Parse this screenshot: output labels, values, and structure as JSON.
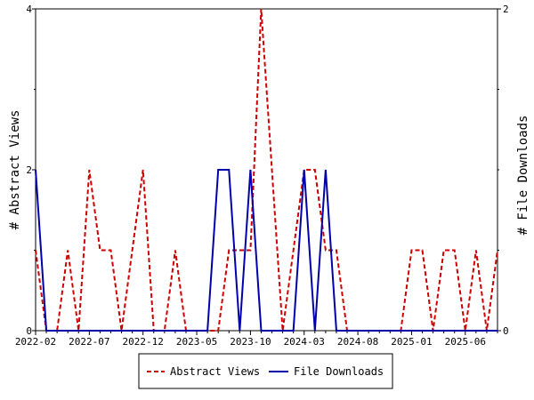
{
  "chart_data": {
    "type": "line",
    "x_tick_labels": [
      "2022-02",
      "2022-07",
      "2022-12",
      "2023-05",
      "2023-10",
      "2024-03",
      "2024-08",
      "2025-01",
      "2025-06"
    ],
    "y_left": {
      "label": "# Abstract Views",
      "range": [
        0,
        4
      ],
      "ticks": [
        "0",
        "2",
        "4"
      ]
    },
    "y_right": {
      "label": "# File Downloads",
      "range": [
        0,
        2
      ],
      "ticks": [
        "0",
        "1",
        "2"
      ]
    },
    "months": [
      "2022-02",
      "2022-03",
      "2022-04",
      "2022-05",
      "2022-06",
      "2022-07",
      "2022-08",
      "2022-09",
      "2022-10",
      "2022-11",
      "2022-12",
      "2023-01",
      "2023-02",
      "2023-03",
      "2023-04",
      "2023-05",
      "2023-06",
      "2023-07",
      "2023-08",
      "2023-09",
      "2023-10",
      "2023-11",
      "2023-12",
      "2024-01",
      "2024-02",
      "2024-03",
      "2024-04",
      "2024-05",
      "2024-06",
      "2024-07",
      "2024-08",
      "2024-09",
      "2024-10",
      "2024-11",
      "2024-12",
      "2025-01",
      "2025-02",
      "2025-03",
      "2025-04",
      "2025-05",
      "2025-06",
      "2025-07",
      "2025-08",
      "2025-09"
    ],
    "series": [
      {
        "name": "Abstract Views",
        "axis": "left",
        "color": "#cc0000",
        "dash": "dashed",
        "values": [
          1,
          0,
          0,
          1,
          0,
          2,
          1,
          1,
          0,
          1,
          2,
          0,
          0,
          1,
          0,
          0,
          0,
          0,
          1,
          1,
          1,
          4,
          2,
          0,
          1,
          2,
          2,
          1,
          1,
          0,
          0,
          0,
          0,
          0,
          0,
          1,
          1,
          0,
          1,
          1,
          0,
          1,
          0,
          1
        ]
      },
      {
        "name": "File Downloads",
        "axis": "right",
        "color": "#0000aa",
        "dash": "solid",
        "values": [
          1,
          0,
          0,
          0,
          0,
          0,
          0,
          0,
          0,
          0,
          0,
          0,
          0,
          0,
          0,
          0,
          0,
          1,
          1,
          0,
          1,
          0,
          0,
          0,
          0,
          1,
          0,
          1,
          0,
          0,
          0,
          0,
          0,
          0,
          0,
          0,
          0,
          0,
          0,
          0,
          0,
          0,
          0,
          0
        ]
      }
    ],
    "legend": {
      "position": "bottom-center",
      "entries": [
        "Abstract Views",
        "File Downloads"
      ]
    },
    "grid": false
  }
}
